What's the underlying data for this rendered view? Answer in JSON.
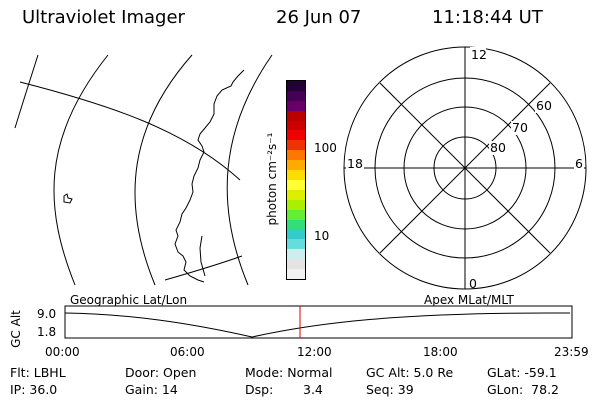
{
  "header": {
    "title": "Ultraviolet Imager",
    "date": "26 Jun 07",
    "time": "11:18:44 UT"
  },
  "colorbar": {
    "unit_label": "photon cm⁻²s⁻¹",
    "tick_100": "100",
    "tick_10": "10",
    "colors": [
      "#f2f2f2",
      "#e4e4e4",
      "#cceeee",
      "#66dddd",
      "#33cccc",
      "#33dd77",
      "#66ee33",
      "#aaee00",
      "#ddee00",
      "#ffff33",
      "#ffdd00",
      "#ffaa00",
      "#ff7700",
      "#ee3300",
      "#ee0000",
      "#cc0000",
      "#bb0000",
      "#660066",
      "#440055",
      "#220033"
    ]
  },
  "polar": {
    "mlt_12": "12",
    "mlt_18": "18",
    "mlt_6": "6",
    "mlt_0": "0",
    "lat_60": "60",
    "lat_70": "70",
    "lat_80": "80"
  },
  "panel_labels": {
    "left": "Geographic Lat/Lon",
    "right": "Apex MLat/MLT"
  },
  "orbit_plot": {
    "ylabel": "GC Alt",
    "y_top": "9.0",
    "y_bottom": "1.8",
    "x_ticks": [
      "00:00",
      "06:00",
      "12:00",
      "18:00",
      "23:59"
    ],
    "current_color": "#dd0000"
  },
  "info": {
    "flt": "Flt: LBHL",
    "door": "Door: Open",
    "mode": "Mode: Normal",
    "gcalt": "GC Alt: 5.0 Re",
    "glat": "GLat: -59.1",
    "ip": "IP: 36.0",
    "gain": "Gain: 14",
    "dsp_label": "Dsp:",
    "dsp_value": "3.4",
    "seq": "Seq: 39",
    "glon": "GLon:  78.2"
  }
}
